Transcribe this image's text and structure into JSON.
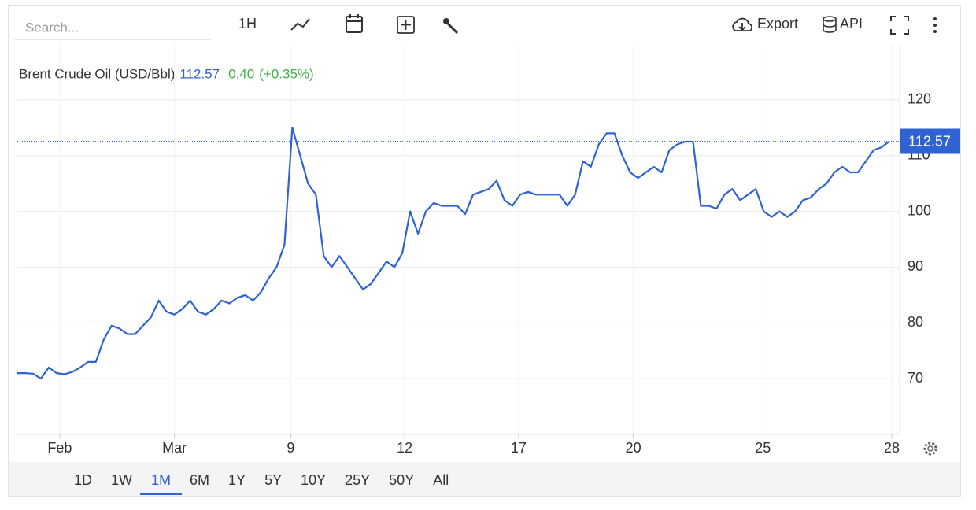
{
  "toolbar": {
    "search_placeholder": "Search...",
    "interval": "1H",
    "export": "Export",
    "api": "API"
  },
  "header": {
    "price": 112.57,
    "change": "0.40",
    "change_pct": "(+0.35%)"
  },
  "ranges": [
    "1D",
    "1W",
    "1M",
    "6M",
    "1Y",
    "5Y",
    "10Y",
    "25Y",
    "50Y",
    "All"
  ],
  "active_range": "1M",
  "chart_data": {
    "type": "line",
    "title": "Brent Crude Oil (USD/Bbl)",
    "x": [
      0,
      1,
      2,
      3,
      4,
      5,
      6,
      7,
      8,
      9,
      10,
      11,
      12,
      13,
      14,
      15,
      16,
      17,
      18,
      19,
      20,
      21,
      22,
      23,
      24,
      25,
      26,
      27,
      28,
      29,
      30,
      31,
      32,
      33,
      34,
      35,
      36,
      37,
      38,
      39,
      40,
      41,
      42,
      43,
      44,
      45,
      46,
      47,
      48,
      49,
      50,
      51,
      52,
      53,
      54,
      55,
      56,
      57,
      58,
      59,
      60,
      61,
      62,
      63,
      64,
      65,
      66,
      67,
      68,
      69,
      70,
      71,
      72,
      73,
      74,
      75,
      76,
      77,
      78,
      79,
      80,
      81,
      82,
      83,
      84,
      85,
      86,
      87,
      88,
      89,
      90,
      91,
      92,
      93,
      94,
      95,
      96,
      97,
      98,
      99,
      100,
      101,
      102,
      103,
      104,
      105,
      106,
      107,
      108,
      109,
      110,
      111
    ],
    "series": [
      {
        "name": "Brent Crude Oil (USD/Bbl)",
        "color": "#2f62d3",
        "values": [
          71,
          71,
          70.9,
          70,
          72,
          71,
          70.8,
          71.2,
          72,
          73,
          73,
          77,
          79.5,
          79,
          78,
          78,
          79.5,
          81,
          84,
          82,
          81.5,
          82.5,
          84,
          82,
          81.5,
          82.5,
          84,
          83.5,
          84.5,
          85,
          84,
          85.5,
          88,
          90,
          94,
          115,
          110,
          105,
          103,
          92,
          90,
          92,
          90,
          88,
          86,
          87,
          89,
          91,
          90,
          92.5,
          100,
          96,
          100,
          101.5,
          101,
          101,
          101,
          99.5,
          103,
          103.5,
          104,
          105.5,
          102,
          101,
          103,
          103.5,
          103,
          103,
          103,
          103,
          101,
          103,
          109,
          108,
          112,
          114,
          114,
          110,
          107,
          106,
          107,
          108,
          107,
          111,
          112,
          112.5,
          112.5,
          101,
          101,
          100.5,
          103,
          104,
          102,
          103,
          104,
          100,
          99,
          100,
          99,
          100,
          102,
          102.5,
          104,
          105,
          107,
          108,
          107,
          107,
          109,
          111,
          111.5,
          112.57
        ]
      }
    ],
    "xlim": [
      0,
      112.2
    ],
    "xticks": [
      {
        "value": 5.4,
        "label": "Feb"
      },
      {
        "value": 20,
        "label": "Mar"
      },
      {
        "value": 34.8,
        "label": "9"
      },
      {
        "value": 49.3,
        "label": "12"
      },
      {
        "value": 63.8,
        "label": "17"
      },
      {
        "value": 78.4,
        "label": "20"
      },
      {
        "value": 94.9,
        "label": "25"
      },
      {
        "value": 111.3,
        "label": "28"
      }
    ],
    "ylim": [
      60,
      130
    ],
    "yticks": [
      70,
      80,
      90,
      100,
      110,
      120
    ],
    "grid": true,
    "last_value": 112.57
  }
}
